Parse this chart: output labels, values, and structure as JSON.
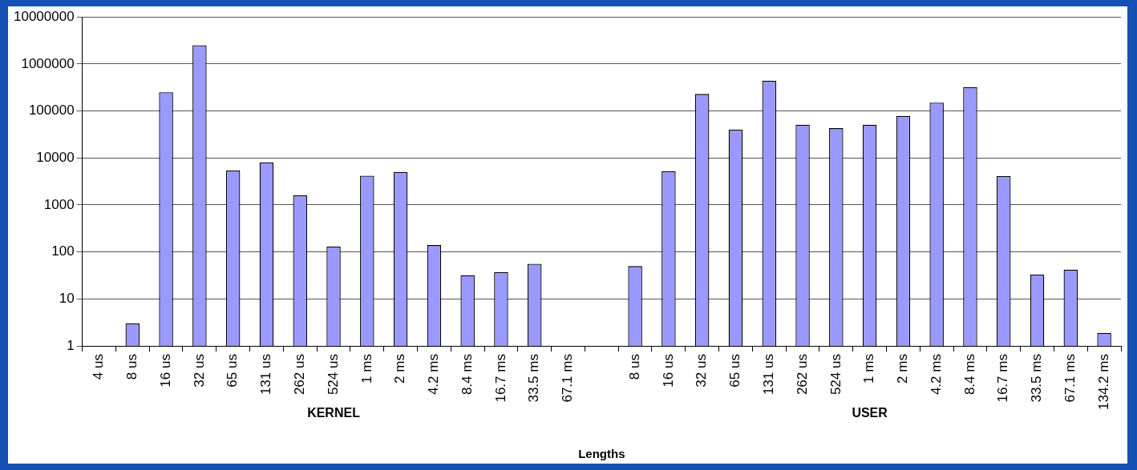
{
  "chart_data": {
    "type": "bar",
    "xlabel": "Lengths",
    "annotations": [
      "KERNEL",
      "USER"
    ],
    "categories": [
      "4 us",
      "8 us",
      "16 us",
      "32 us",
      "65 us",
      "131 us",
      "262 us",
      "524 us",
      "1 ms",
      "2 ms",
      "4.2 ms",
      "8.4 ms",
      "16.7 ms",
      "33.5 ms",
      "67.1 ms",
      null,
      "8 us",
      "16 us",
      "32 us",
      "65 us",
      "131 us",
      "262 us",
      "524 us",
      "1 ms",
      "2 ms",
      "4.2 ms",
      "8.4 ms",
      "16.7 ms",
      "33.5 ms",
      "67.1 ms",
      "134.2 ms"
    ],
    "values": [
      null,
      3,
      250000,
      2500000,
      5400,
      8000,
      1600,
      130,
      4200,
      5000,
      140,
      32,
      37,
      56,
      null,
      null,
      50,
      5200,
      230000,
      40000,
      440000,
      51000,
      43000,
      51000,
      78000,
      150000,
      320000,
      4100,
      33,
      42,
      1.9
    ],
    "color": "#9999ff",
    "log": "y",
    "ylim": [
      1,
      10000000
    ],
    "yticks": [
      1,
      10,
      100,
      1000,
      10000,
      100000,
      1000000,
      10000000
    ],
    "grid": "y",
    "legend": false
  }
}
